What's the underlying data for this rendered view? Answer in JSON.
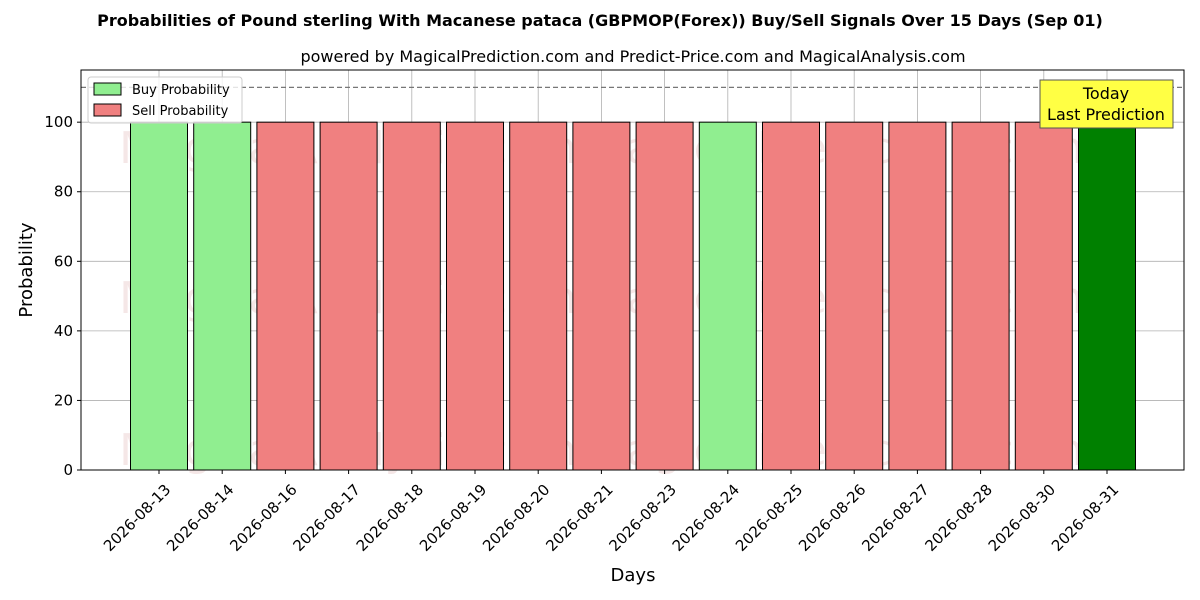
{
  "chart_data": {
    "type": "bar",
    "title": "Probabilities of Pound sterling With Macanese pataca (GBPMOP(Forex)) Buy/Sell Signals Over 15 Days (Sep 01)",
    "subtitle": "powered by MagicalPrediction.com and Predict-Price.com and MagicalAnalysis.com",
    "xlabel": "Days",
    "ylabel": "Probability",
    "ylim": [
      0,
      115
    ],
    "yticks": [
      0,
      20,
      40,
      60,
      80,
      100
    ],
    "reference_line": 110,
    "grid": true,
    "legend_position": "top-left",
    "categories": [
      "2026-08-13",
      "2026-08-14",
      "2026-08-16",
      "2026-08-17",
      "2026-08-18",
      "2026-08-19",
      "2026-08-20",
      "2026-08-21",
      "2026-08-23",
      "2026-08-24",
      "2026-08-25",
      "2026-08-26",
      "2026-08-27",
      "2026-08-28",
      "2026-08-30",
      "2026-08-31"
    ],
    "values": [
      100,
      100,
      100,
      100,
      100,
      100,
      100,
      100,
      100,
      100,
      100,
      100,
      100,
      100,
      100,
      100
    ],
    "signals": [
      "buy",
      "buy",
      "sell",
      "sell",
      "sell",
      "sell",
      "sell",
      "sell",
      "sell",
      "buy",
      "sell",
      "sell",
      "sell",
      "sell",
      "sell",
      "today"
    ],
    "series": [
      {
        "name": "Buy Probability",
        "color": "#90ee90"
      },
      {
        "name": "Sell Probability",
        "color": "#f08080"
      }
    ],
    "today_color": "#008000",
    "annotation": [
      "Today",
      "Last Prediction"
    ],
    "annotation_color": "#ffff44",
    "watermarks": [
      "MagicalAnalysis.com",
      "MagicalPrediction.com"
    ]
  }
}
